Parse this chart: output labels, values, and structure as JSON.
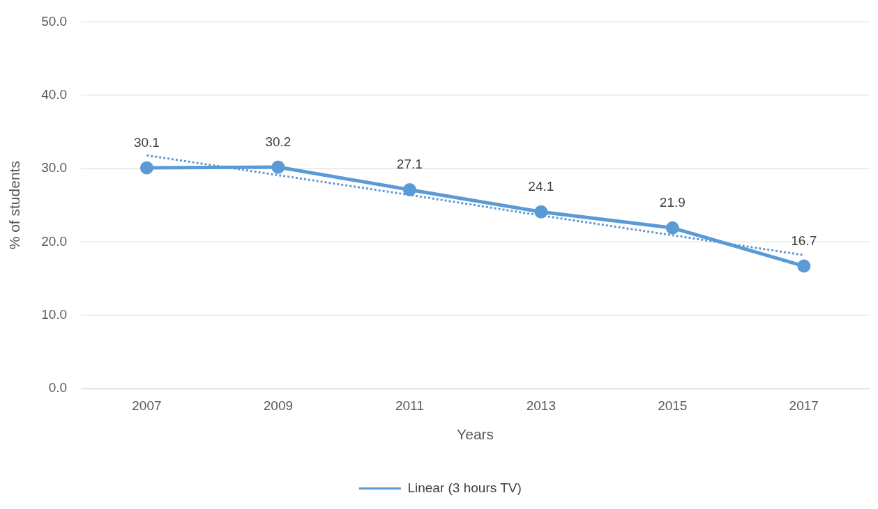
{
  "chart_data": {
    "type": "line",
    "xlabel": "Years",
    "ylabel": "% of students",
    "categories": [
      "2007",
      "2009",
      "2011",
      "2013",
      "2015",
      "2017"
    ],
    "series": [
      {
        "color": "#5b9bd5",
        "values": [
          30.1,
          30.2,
          27.1,
          24.1,
          21.9,
          16.7
        ],
        "value_labels": [
          "30.1",
          "30.2",
          "27.1",
          "24.1",
          "21.9",
          "16.7"
        ],
        "marker": "circle",
        "line_style": "solid"
      },
      {
        "type": "line",
        "name": "Linear (3 hours TV)",
        "color": "#5b9bd5",
        "values": [
          31.8,
          29.1,
          26.4,
          23.6,
          20.9,
          18.2
        ],
        "marker": "none",
        "line_style": "dotted"
      }
    ],
    "ylim": [
      0,
      50
    ],
    "yticks": [
      {
        "value": 0,
        "label": "0.0"
      },
      {
        "value": 10,
        "label": "10.0"
      },
      {
        "value": 20,
        "label": "20.0"
      },
      {
        "value": 30,
        "label": "30.0"
      },
      {
        "value": 40,
        "label": "40.0"
      },
      {
        "value": 50,
        "label": "50.0"
      }
    ],
    "grid": "y",
    "legend": "bottom"
  }
}
